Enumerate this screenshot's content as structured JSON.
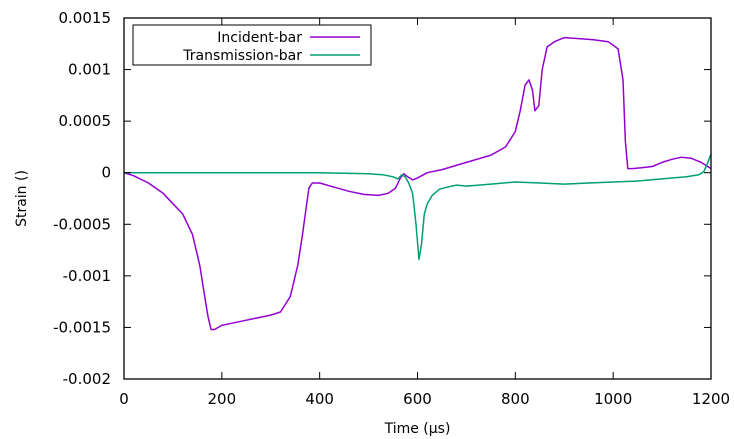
{
  "chart_data": {
    "type": "line",
    "xlabel": "Time (µs)",
    "ylabel": "Strain ()",
    "xlim": [
      0,
      1200
    ],
    "ylim": [
      -0.002,
      0.0015
    ],
    "xticks": [
      0,
      200,
      400,
      600,
      800,
      1000,
      1200
    ],
    "xtick_labels": [
      "0",
      "200",
      "400",
      "600",
      "800",
      "1000",
      "1200"
    ],
    "yticks": [
      0.0015,
      0.001,
      0.0005,
      0,
      -0.0005,
      -0.001,
      -0.0015,
      -0.002
    ],
    "ytick_labels": [
      "0.0015",
      "0.001",
      "0.0005",
      "0",
      "-0.0005",
      "-0.001",
      "-0.0015",
      "-0.002"
    ],
    "grid": false,
    "legend_position": "top-left",
    "series": [
      {
        "name": "Incident-bar",
        "color": "#9400D3",
        "x": [
          0,
          20,
          50,
          80,
          100,
          120,
          140,
          155,
          165,
          172,
          178,
          185,
          200,
          220,
          250,
          280,
          300,
          320,
          340,
          355,
          365,
          372,
          378,
          385,
          400,
          430,
          460,
          490,
          520,
          540,
          555,
          565,
          572,
          580,
          590,
          600,
          620,
          650,
          700,
          750,
          780,
          800,
          810,
          820,
          828,
          835,
          840,
          848,
          855,
          865,
          880,
          900,
          930,
          960,
          990,
          1010,
          1020,
          1025,
          1030,
          1040,
          1060,
          1080,
          1100,
          1120,
          1140,
          1160,
          1180,
          1200
        ],
        "y": [
          0,
          -3e-05,
          -0.0001,
          -0.0002,
          -0.0003,
          -0.0004,
          -0.0006,
          -0.0009,
          -0.0012,
          -0.0014,
          -0.00152,
          -0.00152,
          -0.00148,
          -0.00146,
          -0.00143,
          -0.0014,
          -0.00138,
          -0.00135,
          -0.0012,
          -0.0009,
          -0.0006,
          -0.00035,
          -0.00015,
          -0.0001,
          -0.0001,
          -0.00014,
          -0.00018,
          -0.00021,
          -0.00022,
          -0.0002,
          -0.00015,
          -5e-05,
          -1e-05,
          -4e-05,
          -7e-05,
          -5e-05,
          0,
          3e-05,
          0.0001,
          0.00017,
          0.00025,
          0.0004,
          0.0006,
          0.00085,
          0.0009,
          0.0008,
          0.0006,
          0.00065,
          0.001,
          0.00122,
          0.00127,
          0.00131,
          0.0013,
          0.00129,
          0.00127,
          0.0012,
          0.0009,
          0.0003,
          4e-05,
          4e-05,
          5e-05,
          6e-05,
          0.0001,
          0.00013,
          0.00015,
          0.00014,
          0.0001,
          4e-05
        ]
      },
      {
        "name": "Transmission-bar",
        "color": "#009E73",
        "x": [
          0,
          100,
          200,
          300,
          400,
          450,
          500,
          530,
          550,
          560,
          568,
          575,
          582,
          590,
          597,
          603,
          608,
          614,
          620,
          630,
          645,
          660,
          680,
          700,
          750,
          800,
          850,
          900,
          950,
          1000,
          1050,
          1100,
          1150,
          1175,
          1185,
          1190,
          1195,
          1200
        ],
        "y": [
          0,
          0,
          0,
          0,
          0,
          -5e-06,
          -1e-05,
          -2e-05,
          -4e-05,
          -6e-05,
          -2e-05,
          -4e-05,
          -0.0001,
          -0.0002,
          -0.0005,
          -0.00084,
          -0.0007,
          -0.0004,
          -0.0003,
          -0.00022,
          -0.00016,
          -0.00014,
          -0.00012,
          -0.00013,
          -0.00011,
          -9e-05,
          -0.0001,
          -0.00011,
          -0.0001,
          -9e-05,
          -8e-05,
          -6e-05,
          -4e-05,
          -2e-05,
          1e-05,
          6e-05,
          0.00012,
          0.00018
        ]
      }
    ]
  }
}
